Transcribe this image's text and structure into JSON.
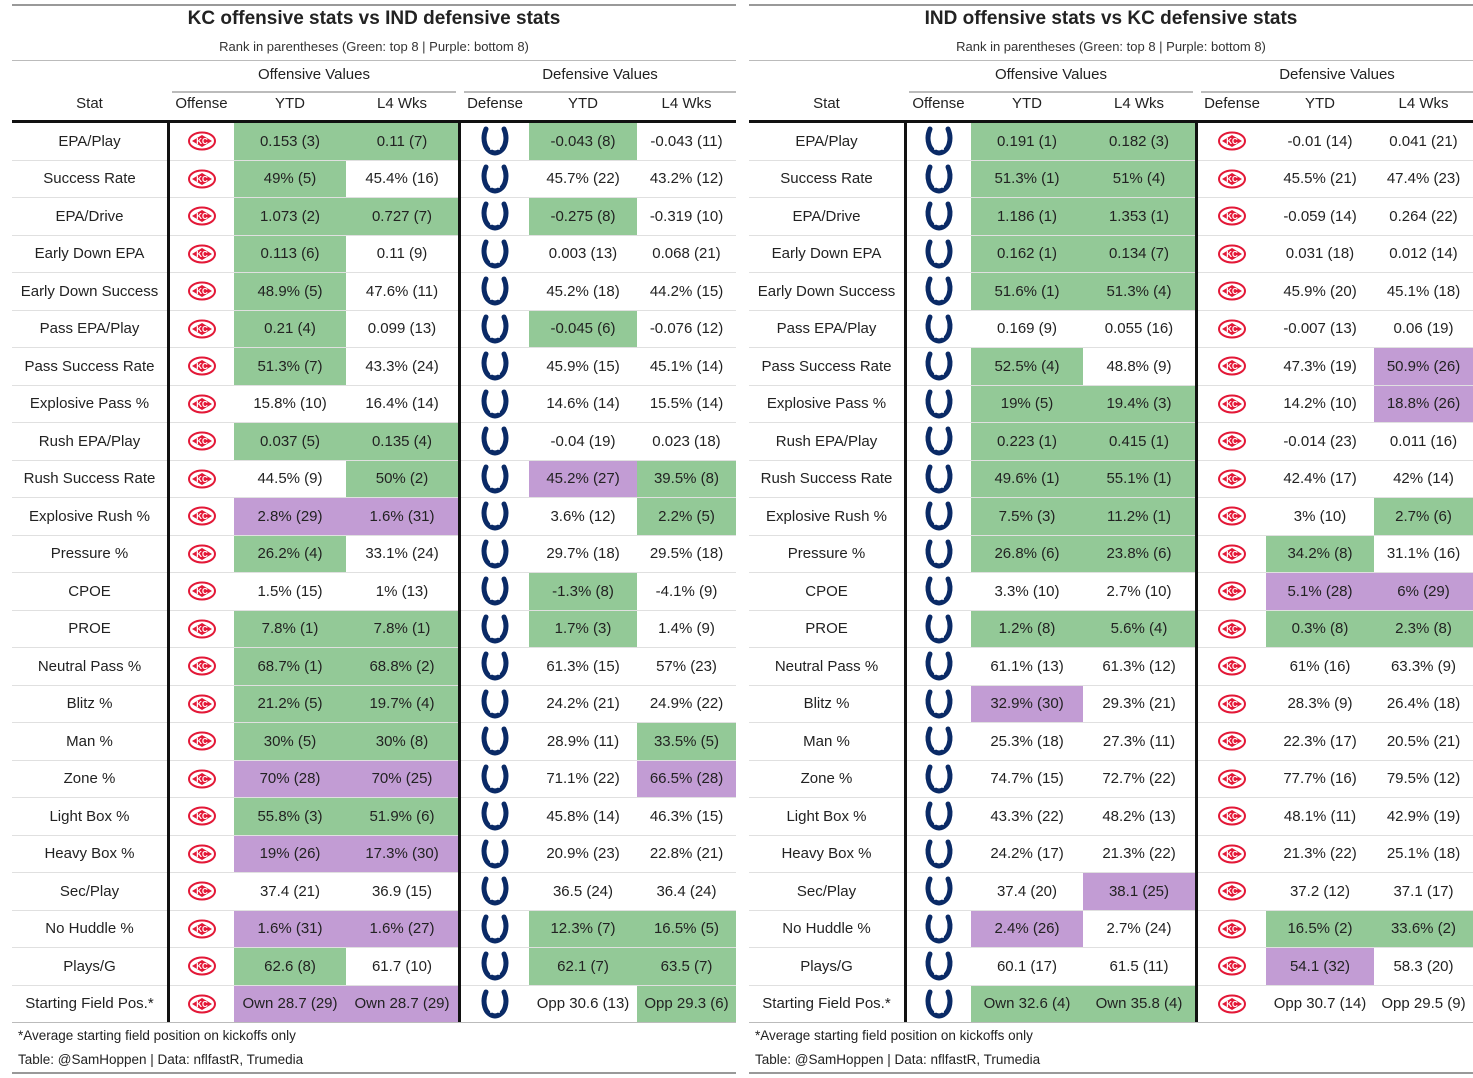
{
  "colors": {
    "green": "#93c997",
    "purple": "#c29cd4",
    "kc_red": "#e31837",
    "ind_blue": "#0a2a66"
  },
  "headers": {
    "offensive_values": "Offensive Values",
    "defensive_values": "Defensive Values",
    "stat": "Stat",
    "offense": "Offense",
    "defense": "Defense",
    "ytd": "YTD",
    "l4": "L4 Wks"
  },
  "stats": [
    "EPA/Play",
    "Success Rate",
    "EPA/Drive",
    "Early Down EPA",
    "Early Down Success",
    "Pass EPA/Play",
    "Pass Success Rate",
    "Explosive Pass %",
    "Rush EPA/Play",
    "Rush Success Rate",
    "Explosive Rush %",
    "Pressure %",
    "CPOE",
    "PROE",
    "Neutral Pass %",
    "Blitz %",
    "Man %",
    "Zone %",
    "Light Box %",
    "Heavy Box %",
    "Sec/Play",
    "No Huddle %",
    "Plays/G",
    "Starting Field Pos.*"
  ],
  "panels": [
    {
      "title": "KC offensive stats vs IND defensive stats",
      "subtitle": "Rank in parentheses (Green: top 8 | Purple: bottom 8)",
      "offense_team": "KC",
      "defense_team": "IND",
      "offense_icon": "chiefs-logo-icon",
      "defense_icon": "colts-horseshoe-icon",
      "footnote": "*Average starting field position on kickoffs only",
      "credit": "Table: @SamHoppen | Data: nflfastR, Trumedia",
      "rows": [
        [
          [
            "0.153 (3)",
            "g"
          ],
          [
            "0.11 (7)",
            "g"
          ],
          [
            "-0.043 (8)",
            "g"
          ],
          [
            "-0.043 (11)",
            ""
          ]
        ],
        [
          [
            "49% (5)",
            "g"
          ],
          [
            "45.4% (16)",
            ""
          ],
          [
            "45.7% (22)",
            ""
          ],
          [
            "43.2% (12)",
            ""
          ]
        ],
        [
          [
            "1.073 (2)",
            "g"
          ],
          [
            "0.727 (7)",
            "g"
          ],
          [
            "-0.275 (8)",
            "g"
          ],
          [
            "-0.319 (10)",
            ""
          ]
        ],
        [
          [
            "0.113 (6)",
            "g"
          ],
          [
            "0.11 (9)",
            ""
          ],
          [
            "0.003 (13)",
            ""
          ],
          [
            "0.068 (21)",
            ""
          ]
        ],
        [
          [
            "48.9% (5)",
            "g"
          ],
          [
            "47.6% (11)",
            ""
          ],
          [
            "45.2% (18)",
            ""
          ],
          [
            "44.2% (15)",
            ""
          ]
        ],
        [
          [
            "0.21 (4)",
            "g"
          ],
          [
            "0.099 (13)",
            ""
          ],
          [
            "-0.045 (6)",
            "g"
          ],
          [
            "-0.076 (12)",
            ""
          ]
        ],
        [
          [
            "51.3% (7)",
            "g"
          ],
          [
            "43.3% (24)",
            ""
          ],
          [
            "45.9% (15)",
            ""
          ],
          [
            "45.1% (14)",
            ""
          ]
        ],
        [
          [
            "15.8% (10)",
            ""
          ],
          [
            "16.4% (14)",
            ""
          ],
          [
            "14.6% (14)",
            ""
          ],
          [
            "15.5% (14)",
            ""
          ]
        ],
        [
          [
            "0.037 (5)",
            "g"
          ],
          [
            "0.135 (4)",
            "g"
          ],
          [
            "-0.04 (19)",
            ""
          ],
          [
            "0.023 (18)",
            ""
          ]
        ],
        [
          [
            "44.5% (9)",
            ""
          ],
          [
            "50% (2)",
            "g"
          ],
          [
            "45.2% (27)",
            "p"
          ],
          [
            "39.5% (8)",
            "g"
          ]
        ],
        [
          [
            "2.8% (29)",
            "p"
          ],
          [
            "1.6% (31)",
            "p"
          ],
          [
            "3.6% (12)",
            ""
          ],
          [
            "2.2% (5)",
            "g"
          ]
        ],
        [
          [
            "26.2% (4)",
            "g"
          ],
          [
            "33.1% (24)",
            ""
          ],
          [
            "29.7% (18)",
            ""
          ],
          [
            "29.5% (18)",
            ""
          ]
        ],
        [
          [
            "1.5% (15)",
            ""
          ],
          [
            "1% (13)",
            ""
          ],
          [
            "-1.3% (8)",
            "g"
          ],
          [
            "-4.1% (9)",
            ""
          ]
        ],
        [
          [
            "7.8% (1)",
            "g"
          ],
          [
            "7.8% (1)",
            "g"
          ],
          [
            "1.7% (3)",
            "g"
          ],
          [
            "1.4% (9)",
            ""
          ]
        ],
        [
          [
            "68.7% (1)",
            "g"
          ],
          [
            "68.8% (2)",
            "g"
          ],
          [
            "61.3% (15)",
            ""
          ],
          [
            "57% (23)",
            ""
          ]
        ],
        [
          [
            "21.2% (5)",
            "g"
          ],
          [
            "19.7% (4)",
            "g"
          ],
          [
            "24.2% (21)",
            ""
          ],
          [
            "24.9% (22)",
            ""
          ]
        ],
        [
          [
            "30% (5)",
            "g"
          ],
          [
            "30% (8)",
            "g"
          ],
          [
            "28.9% (11)",
            ""
          ],
          [
            "33.5% (5)",
            "g"
          ]
        ],
        [
          [
            "70% (28)",
            "p"
          ],
          [
            "70% (25)",
            "p"
          ],
          [
            "71.1% (22)",
            ""
          ],
          [
            "66.5% (28)",
            "p"
          ]
        ],
        [
          [
            "55.8% (3)",
            "g"
          ],
          [
            "51.9% (6)",
            "g"
          ],
          [
            "45.8% (14)",
            ""
          ],
          [
            "46.3% (15)",
            ""
          ]
        ],
        [
          [
            "19% (26)",
            "p"
          ],
          [
            "17.3% (30)",
            "p"
          ],
          [
            "20.9% (23)",
            ""
          ],
          [
            "22.8% (21)",
            ""
          ]
        ],
        [
          [
            "37.4 (21)",
            ""
          ],
          [
            "36.9 (15)",
            ""
          ],
          [
            "36.5 (24)",
            ""
          ],
          [
            "36.4 (24)",
            ""
          ]
        ],
        [
          [
            "1.6% (31)",
            "p"
          ],
          [
            "1.6% (27)",
            "p"
          ],
          [
            "12.3% (7)",
            "g"
          ],
          [
            "16.5% (5)",
            "g"
          ]
        ],
        [
          [
            "62.6 (8)",
            "g"
          ],
          [
            "61.7 (10)",
            ""
          ],
          [
            "62.1 (7)",
            "g"
          ],
          [
            "63.5 (7)",
            "g"
          ]
        ],
        [
          [
            "Own 28.7 (29)",
            "p"
          ],
          [
            "Own 28.7 (29)",
            "p"
          ],
          [
            "Opp 30.6 (13)",
            ""
          ],
          [
            "Opp 29.3 (6)",
            "g"
          ]
        ]
      ]
    },
    {
      "title": "IND offensive stats vs KC defensive stats",
      "subtitle": "Rank in parentheses (Green: top 8 | Purple: bottom 8)",
      "offense_team": "IND",
      "defense_team": "KC",
      "offense_icon": "colts-horseshoe-icon",
      "defense_icon": "chiefs-logo-icon",
      "footnote": "*Average starting field position on kickoffs only",
      "credit": "Table: @SamHoppen | Data: nflfastR, Trumedia",
      "rows": [
        [
          [
            "0.191 (1)",
            "g"
          ],
          [
            "0.182 (3)",
            "g"
          ],
          [
            "-0.01 (14)",
            ""
          ],
          [
            "0.041 (21)",
            ""
          ]
        ],
        [
          [
            "51.3% (1)",
            "g"
          ],
          [
            "51% (4)",
            "g"
          ],
          [
            "45.5% (21)",
            ""
          ],
          [
            "47.4% (23)",
            ""
          ]
        ],
        [
          [
            "1.186 (1)",
            "g"
          ],
          [
            "1.353 (1)",
            "g"
          ],
          [
            "-0.059 (14)",
            ""
          ],
          [
            "0.264 (22)",
            ""
          ]
        ],
        [
          [
            "0.162 (1)",
            "g"
          ],
          [
            "0.134 (7)",
            "g"
          ],
          [
            "0.031 (18)",
            ""
          ],
          [
            "0.012 (14)",
            ""
          ]
        ],
        [
          [
            "51.6% (1)",
            "g"
          ],
          [
            "51.3% (4)",
            "g"
          ],
          [
            "45.9% (20)",
            ""
          ],
          [
            "45.1% (18)",
            ""
          ]
        ],
        [
          [
            "0.169 (9)",
            ""
          ],
          [
            "0.055 (16)",
            ""
          ],
          [
            "-0.007 (13)",
            ""
          ],
          [
            "0.06 (19)",
            ""
          ]
        ],
        [
          [
            "52.5% (4)",
            "g"
          ],
          [
            "48.8% (9)",
            ""
          ],
          [
            "47.3% (19)",
            ""
          ],
          [
            "50.9% (26)",
            "p"
          ]
        ],
        [
          [
            "19% (5)",
            "g"
          ],
          [
            "19.4% (3)",
            "g"
          ],
          [
            "14.2% (10)",
            ""
          ],
          [
            "18.8% (26)",
            "p"
          ]
        ],
        [
          [
            "0.223 (1)",
            "g"
          ],
          [
            "0.415 (1)",
            "g"
          ],
          [
            "-0.014 (23)",
            ""
          ],
          [
            "0.011 (16)",
            ""
          ]
        ],
        [
          [
            "49.6% (1)",
            "g"
          ],
          [
            "55.1% (1)",
            "g"
          ],
          [
            "42.4% (17)",
            ""
          ],
          [
            "42% (14)",
            ""
          ]
        ],
        [
          [
            "7.5% (3)",
            "g"
          ],
          [
            "11.2% (1)",
            "g"
          ],
          [
            "3% (10)",
            ""
          ],
          [
            "2.7% (6)",
            "g"
          ]
        ],
        [
          [
            "26.8% (6)",
            "g"
          ],
          [
            "23.8% (6)",
            "g"
          ],
          [
            "34.2% (8)",
            "g"
          ],
          [
            "31.1% (16)",
            ""
          ]
        ],
        [
          [
            "3.3% (10)",
            ""
          ],
          [
            "2.7% (10)",
            ""
          ],
          [
            "5.1% (28)",
            "p"
          ],
          [
            "6% (29)",
            "p"
          ]
        ],
        [
          [
            "1.2% (8)",
            "g"
          ],
          [
            "5.6% (4)",
            "g"
          ],
          [
            "0.3% (8)",
            "g"
          ],
          [
            "2.3% (8)",
            "g"
          ]
        ],
        [
          [
            "61.1% (13)",
            ""
          ],
          [
            "61.3% (12)",
            ""
          ],
          [
            "61% (16)",
            ""
          ],
          [
            "63.3% (9)",
            ""
          ]
        ],
        [
          [
            "32.9% (30)",
            "p"
          ],
          [
            "29.3% (21)",
            ""
          ],
          [
            "28.3% (9)",
            ""
          ],
          [
            "26.4% (18)",
            ""
          ]
        ],
        [
          [
            "25.3% (18)",
            ""
          ],
          [
            "27.3% (11)",
            ""
          ],
          [
            "22.3% (17)",
            ""
          ],
          [
            "20.5% (21)",
            ""
          ]
        ],
        [
          [
            "74.7% (15)",
            ""
          ],
          [
            "72.7% (22)",
            ""
          ],
          [
            "77.7% (16)",
            ""
          ],
          [
            "79.5% (12)",
            ""
          ]
        ],
        [
          [
            "43.3% (22)",
            ""
          ],
          [
            "48.2% (13)",
            ""
          ],
          [
            "48.1% (11)",
            ""
          ],
          [
            "42.9% (19)",
            ""
          ]
        ],
        [
          [
            "24.2% (17)",
            ""
          ],
          [
            "21.3% (22)",
            ""
          ],
          [
            "21.3% (22)",
            ""
          ],
          [
            "25.1% (18)",
            ""
          ]
        ],
        [
          [
            "37.4 (20)",
            ""
          ],
          [
            "38.1 (25)",
            "p"
          ],
          [
            "37.2 (12)",
            ""
          ],
          [
            "37.1 (17)",
            ""
          ]
        ],
        [
          [
            "2.4% (26)",
            "p"
          ],
          [
            "2.7% (24)",
            ""
          ],
          [
            "16.5% (2)",
            "g"
          ],
          [
            "33.6% (2)",
            "g"
          ]
        ],
        [
          [
            "60.1 (17)",
            ""
          ],
          [
            "61.5 (11)",
            ""
          ],
          [
            "54.1 (32)",
            "p"
          ],
          [
            "58.3 (20)",
            ""
          ]
        ],
        [
          [
            "Own 32.6 (4)",
            "g"
          ],
          [
            "Own 35.8 (4)",
            "g"
          ],
          [
            "Opp 30.7 (14)",
            ""
          ],
          [
            "Opp 29.5 (9)",
            ""
          ]
        ]
      ]
    }
  ]
}
